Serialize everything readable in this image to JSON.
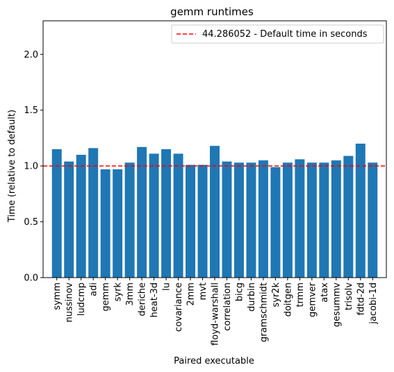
{
  "chart_data": {
    "type": "bar",
    "title": "gemm runtimes",
    "xlabel": "Paired executable",
    "ylabel": "Time (relative to default)",
    "ylim": [
      0,
      2.3
    ],
    "yticks": [
      "0.0",
      "0.5",
      "1.0",
      "1.5",
      "2.0"
    ],
    "bar_color": "#1f77b4",
    "categories": [
      "symm",
      "nussinov",
      "ludcmp",
      "adi",
      "gemm",
      "syrk",
      "3mm",
      "deriche",
      "heat-3d",
      "lu",
      "covariance",
      "2mm",
      "mvt",
      "floyd-warshall",
      "correlation",
      "bicg",
      "durbin",
      "gramschmidt",
      "syr2k",
      "doitgen",
      "trmm",
      "gemver",
      "atax",
      "gesummv",
      "trisolv",
      "fdtd-2d",
      "jacobi-1d"
    ],
    "values": [
      1.15,
      1.04,
      1.1,
      1.16,
      0.97,
      0.97,
      1.03,
      1.17,
      1.11,
      1.15,
      1.11,
      1.01,
      1.01,
      1.18,
      1.04,
      1.03,
      1.03,
      1.05,
      0.99,
      1.03,
      1.06,
      1.03,
      1.03,
      1.05,
      1.09,
      1.2,
      1.03
    ],
    "reference_line": {
      "value": 1.0,
      "style": "dashed",
      "color": "#ff0000",
      "label": "44.286052 - Default time in seconds"
    },
    "legend": {
      "position": "top-right"
    },
    "grid": false
  }
}
